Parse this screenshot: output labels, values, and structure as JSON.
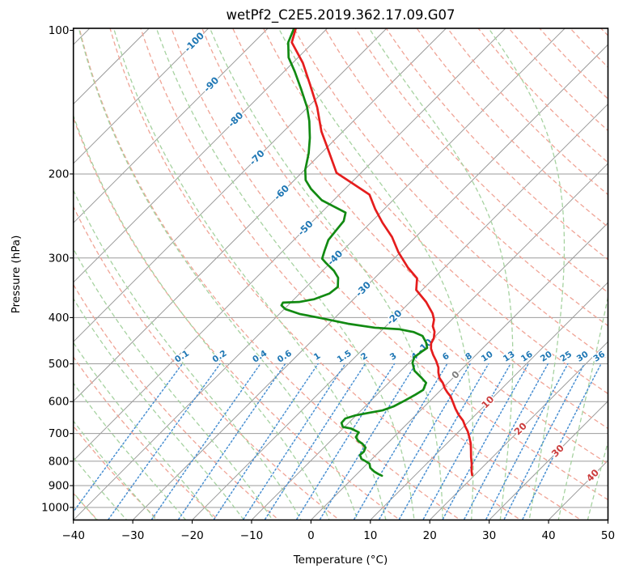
{
  "title": "wetPf2_C2E5.2019.362.17.09.G07",
  "axes": {
    "xlabel": "Temperature (°C)",
    "ylabel": "Pressure (hPa)",
    "x_ticks": [
      -40,
      -30,
      -20,
      -10,
      0,
      10,
      20,
      30,
      40,
      50
    ],
    "y_ticks": [
      100,
      200,
      300,
      400,
      500,
      600,
      700,
      800,
      900,
      1000
    ]
  },
  "colors": {
    "temperature_curve": "#e51d1d",
    "dewpoint_curve": "#128a12",
    "isotherm_line": "#9b9b9b",
    "pressure_gridline": "#9b9b9b",
    "dry_adiabat": "#f0a496",
    "moist_adiabat": "#a6d2a0",
    "mixing_ratio_line": "#4a90d2",
    "label_negative": "#1f77b4",
    "label_zero": "#7f7f7f",
    "label_positive": "#cb3d3d",
    "spine": "#000000"
  },
  "isotherm_labels": [
    {
      "text": "-100",
      "t": -100,
      "p": 106
    },
    {
      "text": "-90",
      "t": -90,
      "p": 130
    },
    {
      "text": "-80",
      "t": -80,
      "p": 154
    },
    {
      "text": "-70",
      "t": -70,
      "p": 185
    },
    {
      "text": "-60",
      "t": -60,
      "p": 219
    },
    {
      "text": "-50",
      "t": -50,
      "p": 260
    },
    {
      "text": "-40",
      "t": -40,
      "p": 300
    },
    {
      "text": "-30",
      "t": -30,
      "p": 349
    },
    {
      "text": "-20",
      "t": -20,
      "p": 400
    },
    {
      "text": "-10",
      "t": -10,
      "p": 460
    },
    {
      "text": "0",
      "t": 0,
      "p": 528
    },
    {
      "text": "10",
      "t": 10,
      "p": 602
    },
    {
      "text": "20",
      "t": 20,
      "p": 685
    },
    {
      "text": "30",
      "t": 30,
      "p": 762
    },
    {
      "text": "40",
      "t": 40,
      "p": 858
    }
  ],
  "mixing_ratio_labels": [
    {
      "text": "0.1",
      "w": 0.1
    },
    {
      "text": "0.2",
      "w": 0.2
    },
    {
      "text": "0.4",
      "w": 0.4
    },
    {
      "text": "0.6",
      "w": 0.6
    },
    {
      "text": "1",
      "w": 1
    },
    {
      "text": "1.5",
      "w": 1.5
    },
    {
      "text": "2",
      "w": 2
    },
    {
      "text": "3",
      "w": 3
    },
    {
      "text": "4",
      "w": 4
    },
    {
      "text": "6",
      "w": 6
    },
    {
      "text": "8",
      "w": 8
    },
    {
      "text": "10",
      "w": 10
    },
    {
      "text": "13",
      "w": 13
    },
    {
      "text": "16",
      "w": 16
    },
    {
      "text": "20",
      "w": 20
    },
    {
      "text": "25",
      "w": 25
    },
    {
      "text": "30",
      "w": 30
    },
    {
      "text": "36",
      "w": 36
    }
  ],
  "chart_data": {
    "type": "line",
    "variant": "skewt_logp",
    "title": "wetPf2_C2E5.2019.362.17.09.G07",
    "xlabel": "Temperature (°C)",
    "ylabel": "Pressure (hPa)",
    "xlim": [
      -40,
      50
    ],
    "ylim_hpa": [
      1060,
      99
    ],
    "skew_degrees": 45,
    "grid": true,
    "reference_lines": {
      "isotherms_degC": {
        "start": -140,
        "end": 60,
        "step": 10
      },
      "dry_adiabats_theta_degC": {
        "start": -60,
        "end": 200,
        "step": 10
      },
      "moist_adiabats_start_degC": {
        "start": -40,
        "end": 50,
        "step": 5
      },
      "mixing_ratio_g_per_kg": [
        0.1,
        0.2,
        0.4,
        0.6,
        1,
        1.5,
        2,
        3,
        4,
        6,
        8,
        10,
        13,
        16,
        20,
        25,
        30,
        36
      ],
      "mixing_ratio_label_pressure_hpa": 483,
      "mixing_ratio_top_pressure_hpa": 500
    },
    "series": [
      {
        "name": "temperature",
        "units": {
          "pressure": "hPa",
          "value": "degC"
        },
        "points": [
          [
            99,
            -85.3
          ],
          [
            106,
            -83.6
          ],
          [
            117,
            -78.3
          ],
          [
            130,
            -73.4
          ],
          [
            145,
            -68.4
          ],
          [
            163,
            -63.6
          ],
          [
            175,
            -60.2
          ],
          [
            199,
            -54.1
          ],
          [
            208,
            -50.2
          ],
          [
            221,
            -44.9
          ],
          [
            237,
            -41.5
          ],
          [
            253,
            -38.0
          ],
          [
            271,
            -34.0
          ],
          [
            292,
            -30.3
          ],
          [
            314,
            -26.2
          ],
          [
            331,
            -22.8
          ],
          [
            350,
            -21.0
          ],
          [
            371,
            -17.3
          ],
          [
            392,
            -14.3
          ],
          [
            404,
            -13.0
          ],
          [
            417,
            -12.1
          ],
          [
            428,
            -10.9
          ],
          [
            442,
            -9.9
          ],
          [
            453,
            -9.5
          ],
          [
            465,
            -8.6
          ],
          [
            479,
            -7.2
          ],
          [
            493,
            -5.7
          ],
          [
            509,
            -4.2
          ],
          [
            521,
            -3.4
          ],
          [
            535,
            -2.3
          ],
          [
            548,
            -0.9
          ],
          [
            563,
            0.4
          ],
          [
            574,
            1.5
          ],
          [
            585,
            2.7
          ],
          [
            602,
            4.1
          ],
          [
            621,
            5.6
          ],
          [
            640,
            7.2
          ],
          [
            658,
            8.9
          ],
          [
            676,
            10.2
          ],
          [
            693,
            11.5
          ],
          [
            712,
            12.7
          ],
          [
            734,
            14.0
          ],
          [
            761,
            15.3
          ],
          [
            785,
            16.4
          ],
          [
            810,
            17.6
          ],
          [
            839,
            18.8
          ],
          [
            856,
            19.6
          ]
        ]
      },
      {
        "name": "dewpoint",
        "units": {
          "pressure": "hPa",
          "value": "degC"
        },
        "points": [
          [
            99,
            -85.6
          ],
          [
            106,
            -84.2
          ],
          [
            114,
            -81.6
          ],
          [
            122,
            -78.2
          ],
          [
            133,
            -74.1
          ],
          [
            145,
            -70.1
          ],
          [
            155,
            -67.4
          ],
          [
            168,
            -64.5
          ],
          [
            181,
            -62.1
          ],
          [
            196,
            -59.9
          ],
          [
            206,
            -58.1
          ],
          [
            215,
            -55.7
          ],
          [
            227,
            -52.0
          ],
          [
            234,
            -48.9
          ],
          [
            241,
            -45.9
          ],
          [
            251,
            -44.8
          ],
          [
            263,
            -44.5
          ],
          [
            275,
            -44.2
          ],
          [
            290,
            -43.0
          ],
          [
            301,
            -42.1
          ],
          [
            307,
            -40.8
          ],
          [
            319,
            -38.1
          ],
          [
            330,
            -36.2
          ],
          [
            345,
            -34.7
          ],
          [
            356,
            -35.0
          ],
          [
            366,
            -36.6
          ],
          [
            371,
            -38.7
          ],
          [
            372,
            -41.3
          ],
          [
            377,
            -41.1
          ],
          [
            384,
            -39.8
          ],
          [
            393,
            -36.6
          ],
          [
            401,
            -32.3
          ],
          [
            412,
            -26.8
          ],
          [
            420,
            -21.6
          ],
          [
            423,
            -17.3
          ],
          [
            429,
            -14.3
          ],
          [
            437,
            -12.2
          ],
          [
            451,
            -10.5
          ],
          [
            463,
            -9.4
          ],
          [
            472,
            -9.7
          ],
          [
            484,
            -10.0
          ],
          [
            497,
            -9.4
          ],
          [
            517,
            -7.7
          ],
          [
            535,
            -5.3
          ],
          [
            548,
            -3.7
          ],
          [
            567,
            -3.0
          ],
          [
            580,
            -3.5
          ],
          [
            597,
            -4.3
          ],
          [
            614,
            -5.2
          ],
          [
            626,
            -6.4
          ],
          [
            633,
            -8.2
          ],
          [
            641,
            -10.1
          ],
          [
            651,
            -11.3
          ],
          [
            665,
            -11.2
          ],
          [
            678,
            -10.3
          ],
          [
            683,
            -8.7
          ],
          [
            696,
            -6.7
          ],
          [
            712,
            -6.4
          ],
          [
            726,
            -5.3
          ],
          [
            735,
            -4.2
          ],
          [
            749,
            -3.0
          ],
          [
            764,
            -2.6
          ],
          [
            776,
            -2.7
          ],
          [
            791,
            -1.8
          ],
          [
            800,
            -0.7
          ],
          [
            810,
            0.4
          ],
          [
            826,
            1.2
          ],
          [
            841,
            2.5
          ],
          [
            851,
            3.6
          ],
          [
            858,
            4.5
          ]
        ]
      }
    ]
  }
}
